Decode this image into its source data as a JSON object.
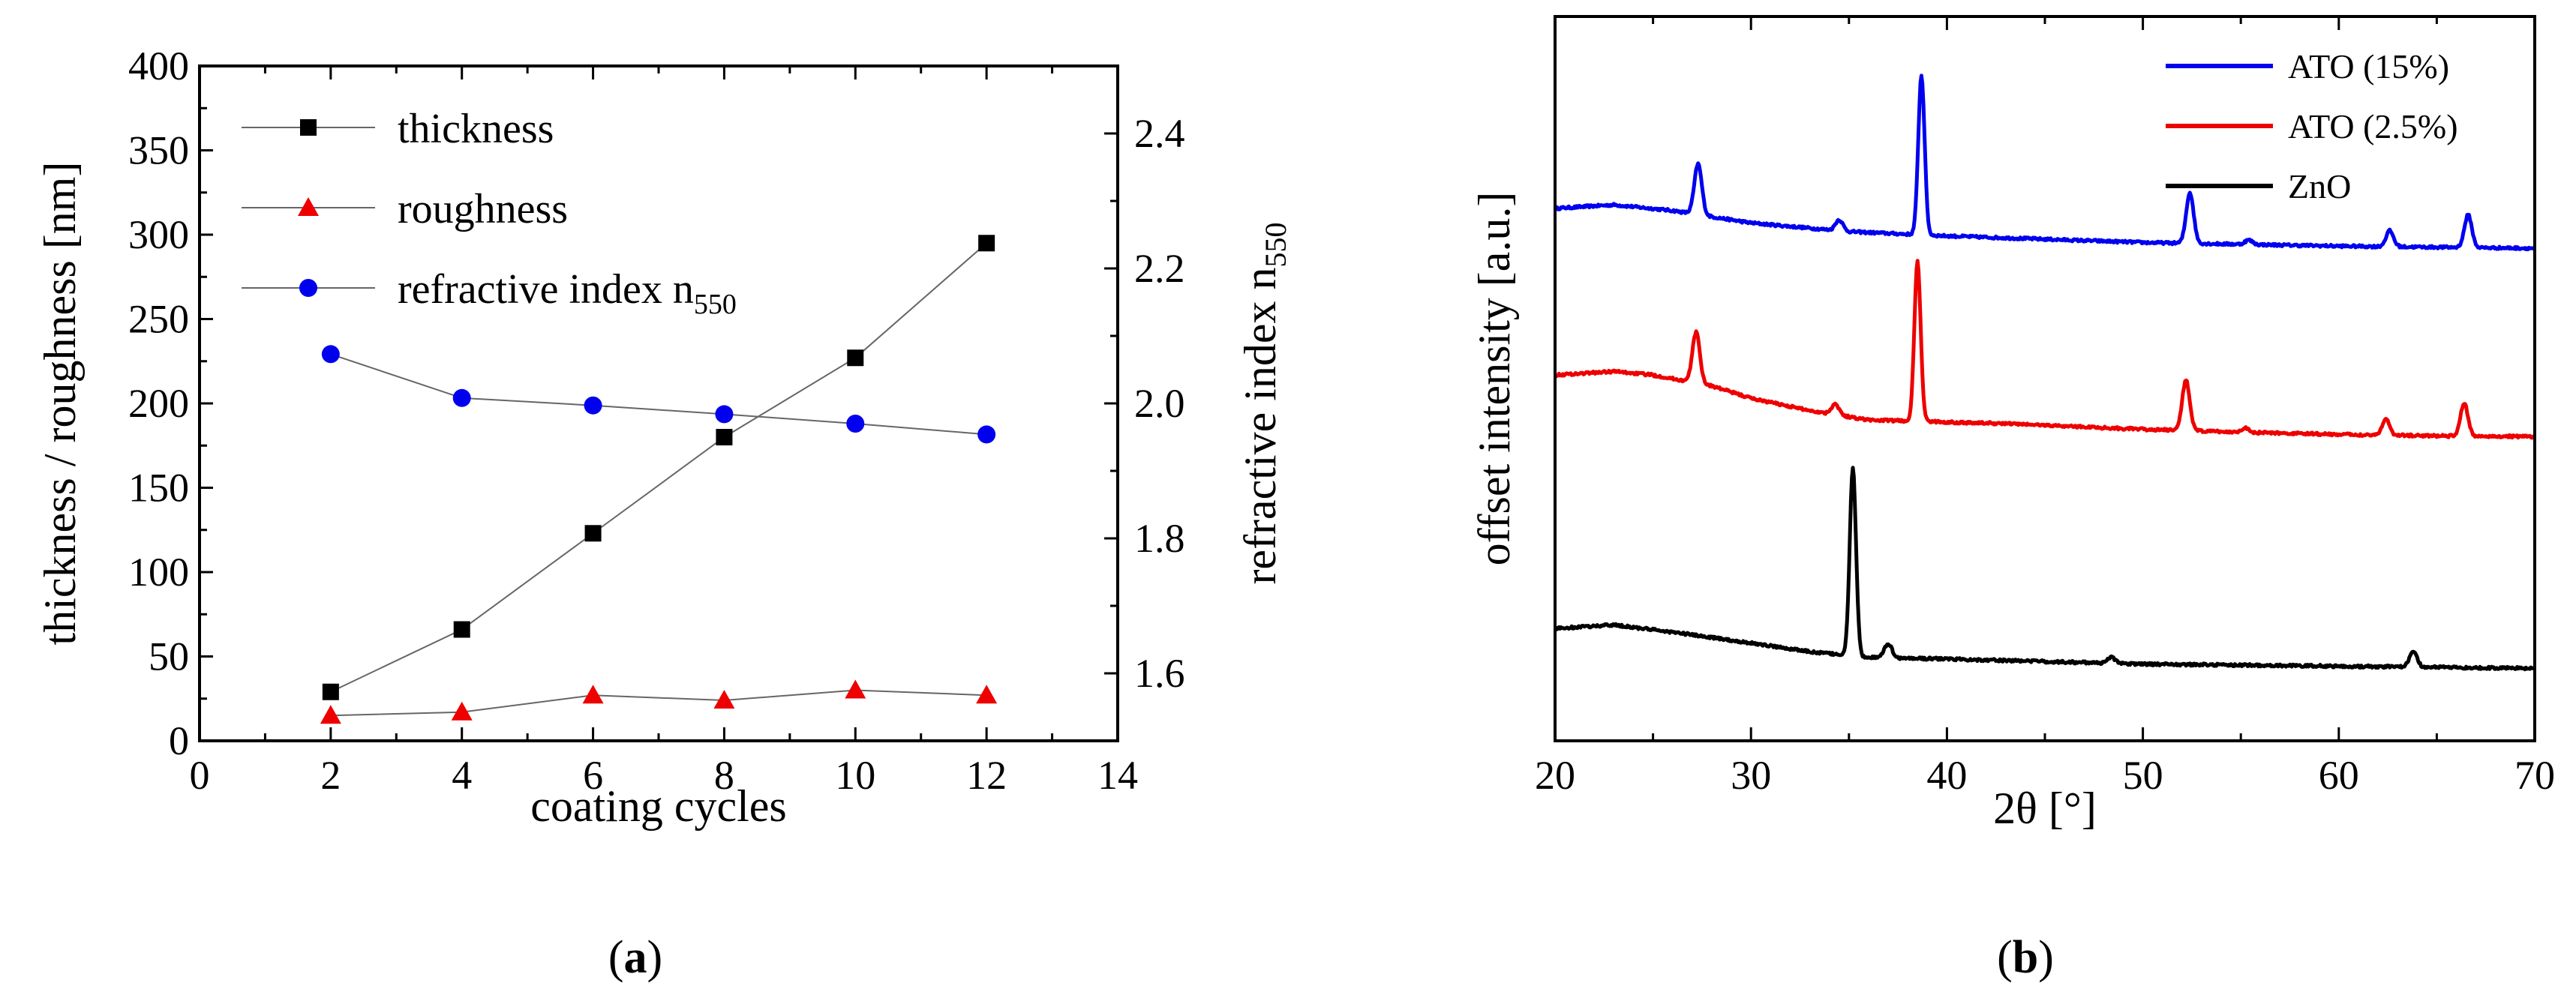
{
  "chart_data": [
    {
      "type": "line",
      "panel": "a",
      "caption_open": "(",
      "caption_letter": "a",
      "caption_close": ")",
      "xlabel": "coating cycles",
      "ylabel": "thickness / roughness [nm]",
      "ylabel2": "refractive index n",
      "ylabel2_sub": "550",
      "xlim": [
        0,
        14
      ],
      "ylim": [
        0,
        400
      ],
      "ylim2": [
        1.5,
        2.5
      ],
      "xticks": [
        "0",
        "2",
        "4",
        "6",
        "8",
        "10",
        "12",
        "14"
      ],
      "yticks": [
        "0",
        "50",
        "100",
        "150",
        "200",
        "250",
        "300",
        "350",
        "400"
      ],
      "yticks2": [
        "1.6",
        "1.8",
        "2.0",
        "2.2",
        "2.4"
      ],
      "x": [
        2,
        4,
        6,
        8,
        10,
        12
      ],
      "series": [
        {
          "name": "thickness",
          "sub": "",
          "axis": "left",
          "marker": "square",
          "color": "#000000",
          "values": [
            29,
            66,
            123,
            180,
            227,
            295
          ]
        },
        {
          "name": "roughness",
          "sub": "",
          "axis": "left",
          "marker": "triangle",
          "color": "#ee0000",
          "values": [
            15,
            17,
            27,
            24,
            30,
            27
          ]
        },
        {
          "name": "refractive index n",
          "sub": "550",
          "axis": "right",
          "marker": "circle",
          "color": "#0000ee",
          "values": [
            2.073,
            2.008,
            1.997,
            1.984,
            1.97,
            1.954
          ]
        }
      ],
      "legend_position": "top-left"
    },
    {
      "type": "line",
      "panel": "b",
      "caption_open": "(",
      "caption_letter": "b",
      "caption_close": ")",
      "xlabel": "2θ [°]",
      "ylabel": "offset intensity [a.u.]",
      "xlim": [
        20,
        70
      ],
      "ylim": [
        0,
        100
      ],
      "xticks": [
        "20",
        "30",
        "40",
        "50",
        "60",
        "70"
      ],
      "yticks_shown": false,
      "legend_position": "top-right",
      "series": [
        {
          "name": "ATO (15%)",
          "color": "#0000ee",
          "baseline": [
            [
              20,
              73.5
            ],
            [
              23,
              74
            ],
            [
              26,
              73.2
            ],
            [
              30,
              71.5
            ],
            [
              35,
              70.3
            ],
            [
              40,
              69.7
            ],
            [
              50,
              68.8
            ],
            [
              60,
              68.3
            ],
            [
              70,
              68
            ]
          ],
          "peaks": [
            [
              27.3,
              7
            ],
            [
              34.5,
              1.5
            ],
            [
              38.7,
              22
            ],
            [
              52.4,
              7
            ],
            [
              55.4,
              0.6
            ],
            [
              62.6,
              2.2
            ],
            [
              66.6,
              4.5
            ]
          ]
        },
        {
          "name": "ATO (2.5%)",
          "color": "#ee0000",
          "baseline": [
            [
              20,
              50.5
            ],
            [
              23,
              51
            ],
            [
              25,
              50.5
            ],
            [
              28,
              49
            ],
            [
              30,
              47.3
            ],
            [
              33,
              45.6
            ],
            [
              36,
              44.3
            ],
            [
              40,
              44
            ],
            [
              43,
              43.8
            ],
            [
              50,
              43
            ],
            [
              55,
              42.6
            ],
            [
              60,
              42.3
            ],
            [
              65,
              42.1
            ],
            [
              70,
              42
            ]
          ],
          "peaks": [
            [
              27.2,
              7
            ],
            [
              34.3,
              1.5
            ],
            [
              38.5,
              22
            ],
            [
              52.2,
              7
            ],
            [
              55.2,
              0.6
            ],
            [
              62.4,
              2.2
            ],
            [
              66.4,
              4.5
            ]
          ]
        },
        {
          "name": "ZnO",
          "color": "#000000",
          "baseline": [
            [
              20,
              15.5
            ],
            [
              23,
              16
            ],
            [
              26,
              15
            ],
            [
              30,
              13.5
            ],
            [
              33,
              12.3
            ],
            [
              36,
              11.5
            ],
            [
              40,
              11.3
            ],
            [
              50,
              10.6
            ],
            [
              60,
              10.3
            ],
            [
              70,
              10
            ]
          ],
          "peaks": [
            [
              35.2,
              26
            ],
            [
              37.0,
              2
            ],
            [
              48.4,
              0.8
            ],
            [
              63.8,
              2.2
            ]
          ]
        }
      ]
    }
  ]
}
